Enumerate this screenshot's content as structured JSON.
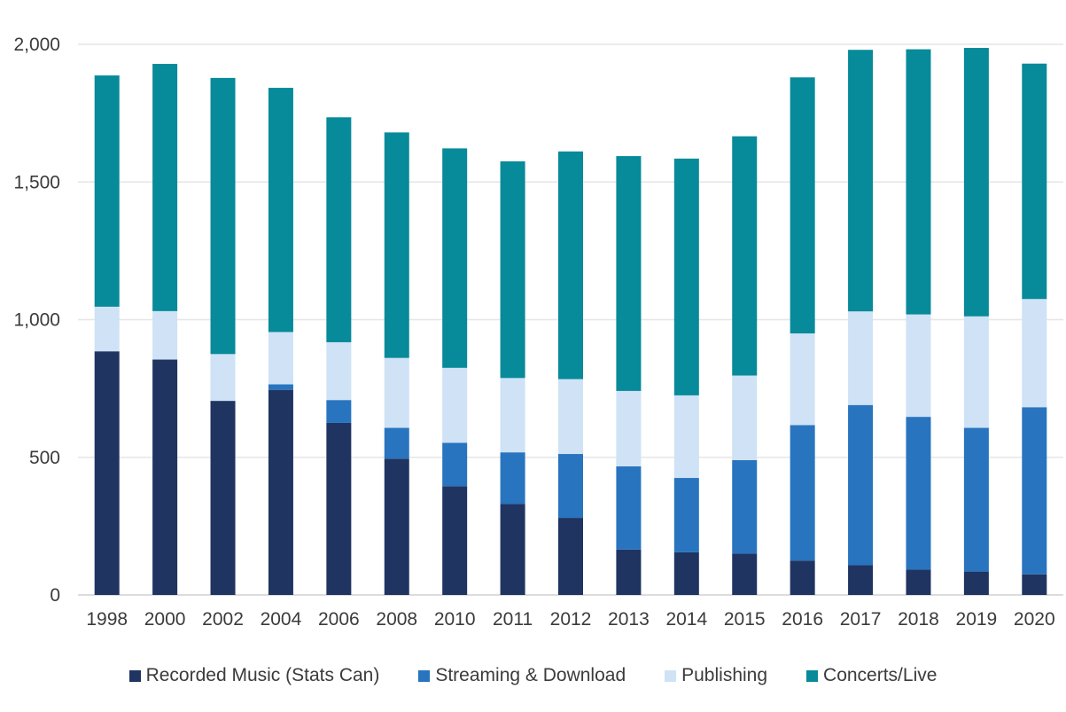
{
  "chart_data": {
    "type": "bar",
    "stacked": true,
    "categories": [
      "1998",
      "2000",
      "2002",
      "2004",
      "2006",
      "2008",
      "2010",
      "2011",
      "2012",
      "2013",
      "2014",
      "2015",
      "2016",
      "2017",
      "2018",
      "2019",
      "2020"
    ],
    "series": [
      {
        "name": "Recorded Music (Stats Can)",
        "color": "#1f3461",
        "values": [
          885,
          855,
          705,
          745,
          625,
          495,
          395,
          330,
          280,
          165,
          155,
          150,
          125,
          108,
          92,
          85,
          75
        ]
      },
      {
        "name": "Streaming & Download",
        "color": "#2874bf",
        "values": [
          0,
          0,
          0,
          20,
          83,
          112,
          158,
          188,
          232,
          302,
          270,
          340,
          492,
          582,
          555,
          522,
          607
        ]
      },
      {
        "name": "Publishing",
        "color": "#cfe2f6",
        "values": [
          162,
          176,
          170,
          190,
          210,
          254,
          272,
          270,
          272,
          274,
          300,
          307,
          333,
          340,
          372,
          405,
          393
        ]
      },
      {
        "name": "Concerts/Live",
        "color": "#078a99",
        "values": [
          840,
          898,
          1003,
          887,
          817,
          819,
          797,
          787,
          827,
          853,
          860,
          869,
          930,
          950,
          963,
          975,
          855
        ]
      }
    ],
    "yticks": [
      "0",
      "500",
      "1,000",
      "1,500",
      "2,000"
    ],
    "ytick_values": [
      0,
      500,
      1000,
      1500,
      2000
    ],
    "ylim": [
      0,
      2000
    ],
    "grid": true,
    "legend_position": "bottom"
  }
}
